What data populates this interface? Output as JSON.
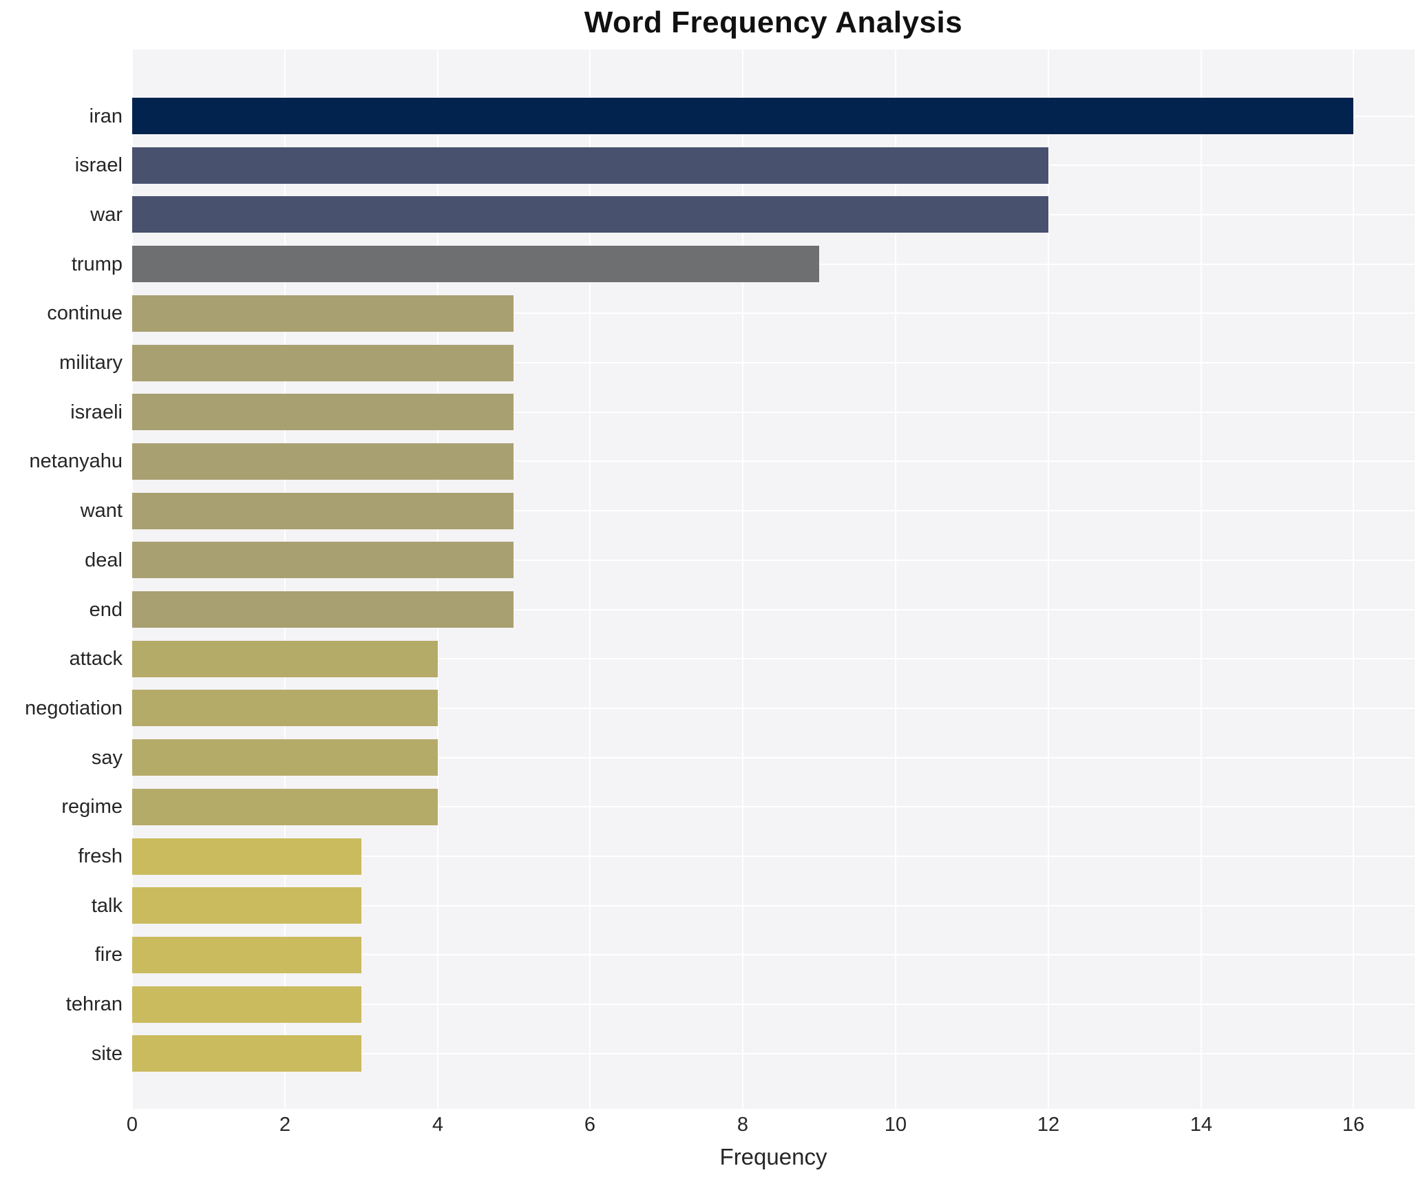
{
  "title": "Word Frequency Analysis",
  "chart_data": {
    "type": "bar",
    "orientation": "horizontal",
    "title": "Word Frequency Analysis",
    "xlabel": "Frequency",
    "ylabel": "",
    "categories": [
      "iran",
      "israel",
      "war",
      "trump",
      "continue",
      "military",
      "israeli",
      "netanyahu",
      "want",
      "deal",
      "end",
      "attack",
      "negotiation",
      "say",
      "regime",
      "fresh",
      "talk",
      "fire",
      "tehran",
      "site"
    ],
    "values": [
      16,
      12,
      12,
      9,
      5,
      5,
      5,
      5,
      5,
      5,
      5,
      4,
      4,
      4,
      4,
      3,
      3,
      3,
      3,
      3
    ],
    "bar_colors": [
      "#02234e",
      "#48516e",
      "#48516e",
      "#6e6f71",
      "#a9a071",
      "#a9a071",
      "#a9a071",
      "#a9a071",
      "#a9a071",
      "#a9a071",
      "#a9a071",
      "#b5ab69",
      "#b5ab69",
      "#b5ab69",
      "#b5ab69",
      "#cabb5f",
      "#cabb5f",
      "#cabb5f",
      "#cabb5f",
      "#cabb5f"
    ],
    "xticks": [
      0,
      2,
      4,
      6,
      8,
      10,
      12,
      14,
      16
    ],
    "xlim": [
      0,
      16.8
    ],
    "grid": true,
    "grid_color": "#ffffff",
    "plot_background": "#f4f4f6",
    "legend": false
  }
}
